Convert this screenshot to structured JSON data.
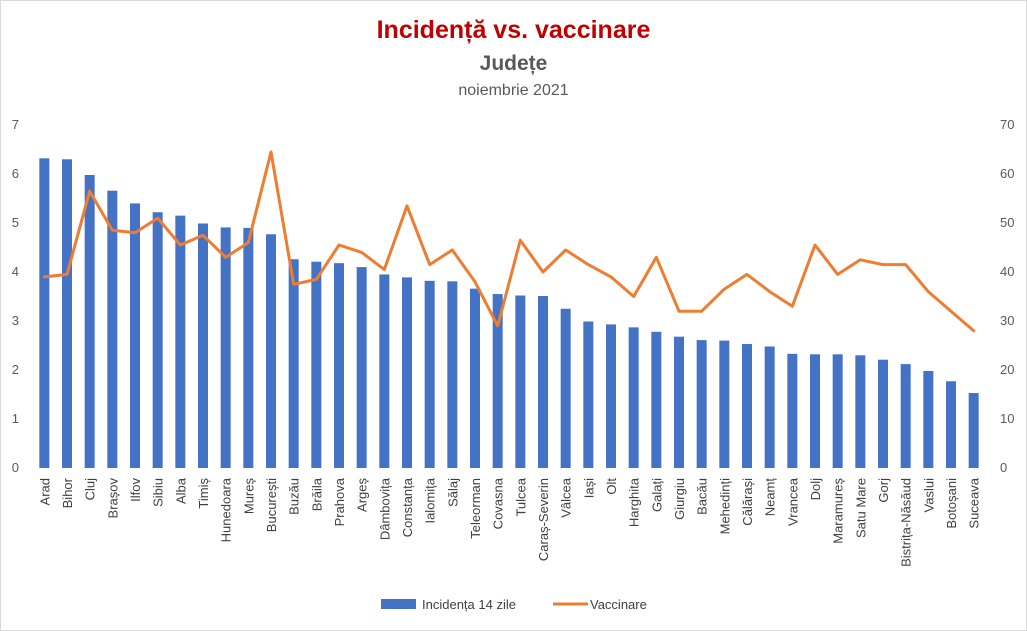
{
  "chart_data": {
    "type": "bar+line",
    "title": "Incidență vs. vaccinare",
    "subtitle": "Județe",
    "period": "noiembrie 2021",
    "categories": [
      "Arad",
      "Bihor",
      "Cluj",
      "Brașov",
      "Ilfov",
      "Sibiu",
      "Alba",
      "Timiș",
      "Hunedoara",
      "Mureș",
      "București",
      "Buzău",
      "Brăila",
      "Prahova",
      "Argeș",
      "Dâmbovița",
      "Constanța",
      "Ialomița",
      "Sălaj",
      "Teleorman",
      "Covasna",
      "Tulcea",
      "Caraș-Severin",
      "Vâlcea",
      "Iași",
      "Olt",
      "Harghita",
      "Galați",
      "Giurgiu",
      "Bacău",
      "Mehedinți",
      "Călărași",
      "Neamț",
      "Vrancea",
      "Dolj",
      "Maramureș",
      "Satu Mare",
      "Gorj",
      "Bistrița-Năsăud",
      "Vaslui",
      "Botoșani",
      "Suceava"
    ],
    "series": [
      {
        "name": "Incidența 14 zile",
        "type": "bar",
        "axis": "left",
        "color": "#4472c4",
        "values": [
          6.32,
          6.3,
          5.98,
          5.66,
          5.4,
          5.22,
          5.15,
          4.99,
          4.91,
          4.9,
          4.77,
          4.26,
          4.21,
          4.18,
          4.1,
          3.95,
          3.89,
          3.82,
          3.81,
          3.66,
          3.55,
          3.52,
          3.51,
          3.25,
          2.99,
          2.93,
          2.87,
          2.78,
          2.68,
          2.61,
          2.6,
          2.53,
          2.48,
          2.33,
          2.32,
          2.32,
          2.3,
          2.21,
          2.12,
          1.98,
          1.77,
          1.53
        ]
      },
      {
        "name": "Vaccinare",
        "type": "line",
        "axis": "right",
        "color": "#ed7d31",
        "values": [
          39,
          39.5,
          56.5,
          48.5,
          48,
          51,
          45.5,
          47.5,
          43,
          46,
          64.5,
          37.5,
          38.5,
          45.5,
          44,
          40.5,
          53.5,
          41.5,
          44.5,
          38,
          29,
          46.5,
          40,
          44.5,
          41.5,
          39,
          35,
          43,
          32,
          32,
          36.5,
          39.5,
          36,
          33,
          45.5,
          39.5,
          42.5,
          41.5,
          41.5,
          36,
          32,
          28
        ]
      }
    ],
    "y_left": {
      "min": 0,
      "max": 7,
      "ticks": [
        "0",
        "1",
        "2",
        "3",
        "4",
        "5",
        "6",
        "7"
      ]
    },
    "y_right": {
      "min": 0,
      "max": 70,
      "ticks": [
        "0",
        "10",
        "20",
        "30",
        "40",
        "50",
        "60",
        "70"
      ]
    },
    "grid": false,
    "legend_position": "bottom"
  }
}
